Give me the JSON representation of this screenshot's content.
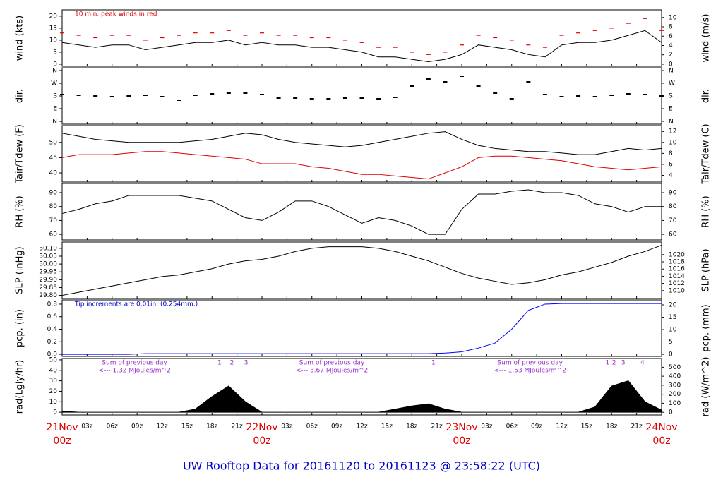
{
  "x_axis": {
    "xlim": [
      0,
      72
    ],
    "x": [
      0,
      2,
      4,
      6,
      8,
      10,
      12,
      14,
      16,
      18,
      20,
      22,
      24,
      26,
      28,
      30,
      32,
      34,
      36,
      38,
      40,
      42,
      44,
      46,
      48,
      50,
      52,
      54,
      56,
      58,
      60,
      62,
      64,
      66,
      68,
      70,
      72
    ],
    "xticks": [
      {
        "value": 0,
        "label": "21Nov",
        "sublabel": "00z"
      },
      {
        "value": 3,
        "label": "03z"
      },
      {
        "value": 6,
        "label": "06z"
      },
      {
        "value": 9,
        "label": "09z"
      },
      {
        "value": 12,
        "label": "12z"
      },
      {
        "value": 15,
        "label": "15z"
      },
      {
        "value": 18,
        "label": "18z"
      },
      {
        "value": 21,
        "label": "21z"
      },
      {
        "value": 24,
        "label": "22Nov",
        "sublabel": "00z"
      },
      {
        "value": 27,
        "label": "03z"
      },
      {
        "value": 30,
        "label": "06z"
      },
      {
        "value": 33,
        "label": "09z"
      },
      {
        "value": 36,
        "label": "12z"
      },
      {
        "value": 39,
        "label": "15z"
      },
      {
        "value": 42,
        "label": "18z"
      },
      {
        "value": 45,
        "label": "21z"
      },
      {
        "value": 48,
        "label": "23Nov",
        "sublabel": "00z"
      },
      {
        "value": 51,
        "label": "03z"
      },
      {
        "value": 54,
        "label": "06z"
      },
      {
        "value": 57,
        "label": "09z"
      },
      {
        "value": 60,
        "label": "12z"
      },
      {
        "value": 63,
        "label": "15z"
      },
      {
        "value": 66,
        "label": "18z"
      },
      {
        "value": 69,
        "label": "21z"
      },
      {
        "value": 72,
        "label": "24Nov",
        "sublabel": "00z"
      }
    ]
  },
  "chart_data": [
    {
      "type": "line",
      "ylabel": "wind (kts)",
      "y2label": "wind (m/s)",
      "note": "10 min. peak winds in red",
      "note_color": "#e00000",
      "ylim": [
        -0.9,
        22.6
      ],
      "yticks": [
        0,
        5,
        10,
        15,
        20
      ],
      "y2lim": [
        -0.46,
        11.63
      ],
      "y2ticks": [
        0,
        2,
        4,
        6,
        8,
        10
      ],
      "series": [
        {
          "color": "#000000",
          "style": "line",
          "values": [
            9,
            8,
            7,
            8,
            8,
            6,
            7,
            8,
            9,
            9,
            10,
            8,
            9,
            8,
            8,
            7,
            7,
            6,
            5,
            3,
            3,
            2,
            1,
            2,
            4,
            8,
            7,
            6,
            4,
            3,
            8,
            9,
            9,
            10,
            12,
            14,
            9
          ]
        },
        {
          "color": "#e00000",
          "style": "dash",
          "values": [
            13,
            12,
            11,
            12,
            12,
            10,
            11,
            12,
            13,
            13,
            14,
            12,
            13,
            12,
            12,
            11,
            11,
            10,
            9,
            7,
            7,
            5,
            4,
            5,
            8,
            12,
            11,
            10,
            8,
            7,
            12,
            13,
            14,
            15,
            17,
            19,
            14
          ]
        }
      ]
    },
    {
      "type": "scatter",
      "ylabel": "dir.",
      "y2label": "dir.",
      "ylim": [
        -20,
        380
      ],
      "yticks": [
        {
          "value": 0,
          "label": "N"
        },
        {
          "value": 90,
          "label": "E"
        },
        {
          "value": 180,
          "label": "S"
        },
        {
          "value": 270,
          "label": "W"
        },
        {
          "value": 360,
          "label": "N"
        }
      ],
      "y2lim": [
        -20,
        380
      ],
      "y2ticks": [
        {
          "value": 0,
          "label": "N"
        },
        {
          "value": 90,
          "label": "E"
        },
        {
          "value": 180,
          "label": "S"
        },
        {
          "value": 270,
          "label": "W"
        },
        {
          "value": 360,
          "label": "N"
        }
      ],
      "series": [
        {
          "color": "#000000",
          "values": [
            190,
            185,
            180,
            175,
            180,
            185,
            175,
            150,
            185,
            195,
            200,
            200,
            190,
            165,
            165,
            160,
            160,
            165,
            165,
            160,
            170,
            250,
            300,
            280,
            320,
            250,
            200,
            160,
            280,
            190,
            175,
            180,
            175,
            185,
            195,
            190,
            180
          ]
        }
      ]
    },
    {
      "type": "line",
      "ylabel": "Tair/Tdew (F)",
      "y2label": "Tair/Tdew (C)",
      "ylim": [
        37,
        55.5
      ],
      "yticks": [
        40,
        45,
        50
      ],
      "y2lim": [
        2.78,
        13.06
      ],
      "y2ticks": [
        4,
        6,
        8,
        10,
        12
      ],
      "series": [
        {
          "color": "#000000",
          "style": "line",
          "values": [
            53,
            52,
            51,
            50.5,
            50,
            50,
            50,
            50,
            50.5,
            51,
            52,
            53,
            52.5,
            51,
            50,
            49.5,
            49,
            48.5,
            49,
            50,
            51,
            52,
            53,
            53.5,
            51,
            49,
            48,
            47.5,
            47,
            47,
            46.5,
            46,
            46,
            47,
            48,
            47.5,
            48
          ]
        },
        {
          "color": "#e00000",
          "style": "line",
          "values": [
            45,
            46,
            46,
            46,
            46.5,
            47,
            47,
            46.5,
            46,
            45.5,
            45,
            44.5,
            43,
            43,
            43,
            42,
            41.5,
            40.5,
            39.5,
            39.5,
            39,
            38.5,
            38,
            40,
            42,
            45,
            45.5,
            45.5,
            45,
            44.5,
            44,
            43,
            42,
            41.5,
            41,
            41.5,
            42
          ]
        }
      ]
    },
    {
      "type": "line",
      "ylabel": "RH (%)",
      "y2label": "RH (%)",
      "ylim": [
        56,
        96.6
      ],
      "yticks": [
        60,
        70,
        80,
        90
      ],
      "y2lim": [
        56,
        96.6
      ],
      "y2ticks": [
        60,
        70,
        80,
        90
      ],
      "series": [
        {
          "color": "#000000",
          "style": "line",
          "values": [
            75,
            78,
            82,
            84,
            88,
            88,
            88,
            88,
            86,
            84,
            78,
            72,
            70,
            76,
            84,
            84,
            80,
            74,
            68,
            72,
            70,
            66,
            60,
            60,
            78,
            89,
            89,
            91,
            92,
            90,
            90,
            88,
            82,
            80,
            76,
            80,
            80
          ]
        }
      ]
    },
    {
      "type": "line",
      "ylabel": "SLP (inHg)",
      "y2label": "SLP (hPa)",
      "ylim": [
        29.78,
        30.14
      ],
      "yticks": [
        {
          "value": 29.8,
          "label": "29.80"
        },
        29.85,
        {
          "value": 29.9,
          "label": "29.90"
        },
        29.95,
        {
          "value": 30,
          "label": "30.00"
        },
        30.05,
        {
          "value": 30.1,
          "label": "30.10"
        }
      ],
      "y2lim": [
        1007.8,
        1023.5
      ],
      "y2ticks": [
        1010,
        1012,
        1014,
        1016,
        1018,
        1020
      ],
      "series": [
        {
          "color": "#000000",
          "style": "line",
          "values": [
            29.8,
            29.82,
            29.84,
            29.86,
            29.88,
            29.9,
            29.92,
            29.93,
            29.95,
            29.97,
            30,
            30.02,
            30.03,
            30.05,
            30.08,
            30.1,
            30.11,
            30.11,
            30.11,
            30.1,
            30.08,
            30.05,
            30.02,
            29.98,
            29.94,
            29.91,
            29.89,
            29.87,
            29.88,
            29.9,
            29.93,
            29.95,
            29.98,
            30.01,
            30.05,
            30.08,
            30.12
          ]
        }
      ]
    },
    {
      "type": "line",
      "ylabel": "pcp. (in)",
      "y2label": "pcp. (mm)",
      "note": "Tip increments are 0.01in. (0.254mm.)",
      "note_color": "#0000cc",
      "ylim": [
        -0.033,
        0.867
      ],
      "yticks": [
        {
          "value": 0,
          "label": "0.0"
        },
        0.2,
        0.4,
        0.6,
        0.8
      ],
      "y2lim": [
        -0.84,
        22.0
      ],
      "y2ticks": [
        0,
        5,
        10,
        15,
        20
      ],
      "series": [
        {
          "color": "#0000ff",
          "style": "line",
          "values": [
            0,
            0,
            0,
            0,
            0,
            0.01,
            0.01,
            0.01,
            0.01,
            0.01,
            0.01,
            0.01,
            0.01,
            0.01,
            0.01,
            0.01,
            0.01,
            0.01,
            0.01,
            0.01,
            0.01,
            0.01,
            0.01,
            0.02,
            0.04,
            0.1,
            0.18,
            0.4,
            0.7,
            0.8,
            0.81,
            0.81,
            0.81,
            0.81,
            0.81,
            0.81,
            0.81
          ]
        }
      ]
    },
    {
      "type": "area",
      "ylabel": "rad(Lgly/hr)",
      "y2label": "rad (W/m^2)",
      "ylim": [
        -2.6,
        51.3
      ],
      "yticks": [
        0,
        10,
        20,
        30,
        40,
        50
      ],
      "y2lim": [
        -30,
        597
      ],
      "y2ticks": [
        0,
        100,
        200,
        300,
        400,
        500
      ],
      "series": [
        {
          "color": "#000000",
          "values": [
            1,
            0,
            0,
            0,
            0,
            0,
            0,
            0,
            3,
            15,
            25,
            10,
            0,
            0,
            0,
            0,
            0,
            0,
            0,
            0,
            3,
            6,
            8,
            3,
            0,
            0,
            0,
            0,
            0,
            0,
            0,
            0,
            5,
            25,
            30,
            10,
            2
          ]
        }
      ],
      "daily_sums": [
        {
          "x": 8.7,
          "label": "Sum of previous day",
          "value": "<--- 1.32 MJoules/m^2"
        },
        {
          "x": 32.4,
          "label": "Sum of previous day",
          "value": "<--- 3.67 MJoules/m^2"
        },
        {
          "x": 56.2,
          "label": "Sum of previous day",
          "value": "<--- 1.53 MJoules/m^2"
        }
      ],
      "hour_marks": [
        {
          "x": 18.9,
          "label": "1"
        },
        {
          "x": 20.4,
          "label": "2"
        },
        {
          "x": 22.1,
          "label": "3"
        },
        {
          "x": 44.6,
          "label": "1"
        },
        {
          "x": 65.5,
          "label": "1"
        },
        {
          "x": 66.3,
          "label": "2"
        },
        {
          "x": 67.4,
          "label": "3"
        },
        {
          "x": 69.7,
          "label": "4"
        }
      ]
    }
  ],
  "footer": "UW Rooftop Data for 20161120  to  20161123 @ 23:58:22  (UTC)"
}
